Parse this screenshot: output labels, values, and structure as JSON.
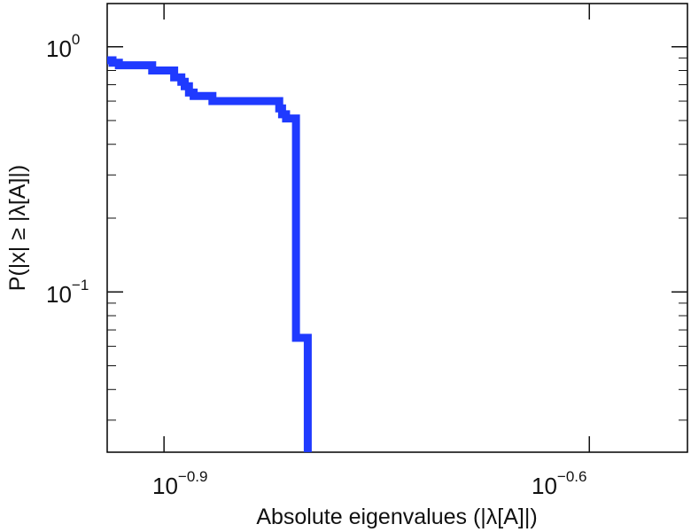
{
  "chart_data": {
    "type": "line",
    "step": true,
    "xlabel": "Absolute eigenvalues (|λ[A]|)",
    "ylabel": "P(|x| ≥ |λ[A]|)",
    "xscale": "log",
    "yscale": "log",
    "xlim": [
      0.1148,
      0.2946
    ],
    "ylim": [
      0.0222,
      1.5
    ],
    "x_ticks": [
      {
        "value": 0.1259,
        "base": "10",
        "exp": "−0.9"
      },
      {
        "value": 0.2512,
        "base": "10",
        "exp": "−0.6"
      }
    ],
    "y_ticks": [
      {
        "value": 1.0,
        "base": "10",
        "exp": "0"
      },
      {
        "value": 0.1,
        "base": "10",
        "exp": "−1"
      }
    ],
    "grid": false,
    "color": "#1f3aff",
    "series": [
      {
        "x": [
          0.1148,
          0.1158,
          0.1158,
          0.117,
          0.117,
          0.1235,
          0.1235,
          0.128,
          0.128,
          0.1295,
          0.1295,
          0.1302,
          0.1302,
          0.1311,
          0.1311,
          0.1321,
          0.1321,
          0.1362,
          0.1362,
          0.1518,
          0.1518,
          0.1525,
          0.1525,
          0.1535,
          0.1535,
          0.156,
          0.156,
          0.159,
          0.159
        ],
        "y": [
          0.88,
          0.88,
          0.86,
          0.86,
          0.84,
          0.84,
          0.8,
          0.8,
          0.75,
          0.75,
          0.72,
          0.72,
          0.69,
          0.69,
          0.65,
          0.65,
          0.63,
          0.63,
          0.6,
          0.6,
          0.56,
          0.56,
          0.53,
          0.53,
          0.51,
          0.51,
          0.065,
          0.065,
          0.0222
        ]
      }
    ]
  }
}
